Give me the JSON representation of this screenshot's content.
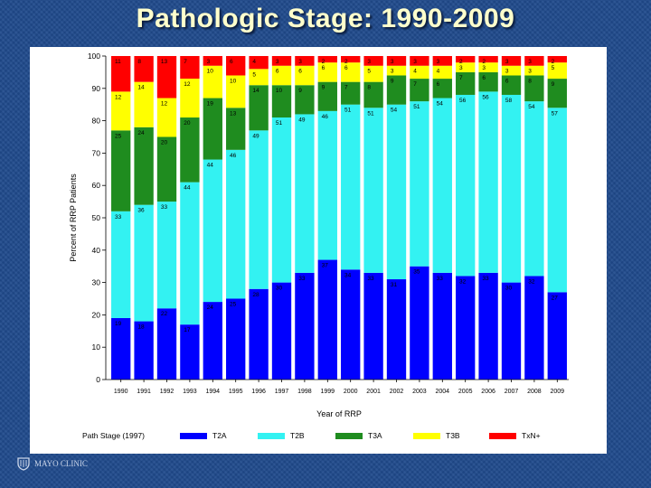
{
  "slide": {
    "title": "Pathologic Stage: 1990-2009"
  },
  "logo": {
    "text": "MAYO CLINIC"
  },
  "legend": {
    "title": "Path Stage (1997)"
  },
  "colors": {
    "T2A": "#0000ff",
    "T2B": "#33f2f2",
    "T3A": "#1f8c1f",
    "T3B": "#ffff00",
    "TxN+": "#ff0000"
  },
  "chart_data": {
    "type": "bar",
    "stacked": true,
    "title": "Pathologic Stage: 1990-2009",
    "xlabel": "Year of RRP",
    "ylabel": "Percent of RRP Patients",
    "ylim": [
      0,
      100
    ],
    "yticks": [
      "0",
      "10",
      "20",
      "30",
      "40",
      "50",
      "60",
      "70",
      "80",
      "90",
      "100"
    ],
    "categories": [
      "1990",
      "1991",
      "1992",
      "1993",
      "1994",
      "1995",
      "1996",
      "1997",
      "1998",
      "1999",
      "2000",
      "2001",
      "2002",
      "2003",
      "2004",
      "2005",
      "2006",
      "2007",
      "2008",
      "2009"
    ],
    "series": [
      {
        "name": "T2A",
        "values": [
          19,
          18,
          22,
          17,
          24,
          25,
          28,
          30,
          33,
          37,
          34,
          33,
          31,
          35,
          33,
          32,
          33,
          30,
          32,
          27
        ]
      },
      {
        "name": "T2B",
        "values": [
          33,
          36,
          33,
          44,
          44,
          46,
          49,
          51,
          49,
          46,
          51,
          51,
          54,
          51,
          54,
          56,
          56,
          58,
          54,
          57
        ]
      },
      {
        "name": "T3A",
        "values": [
          25,
          24,
          20,
          20,
          19,
          13,
          14,
          10,
          9,
          9,
          7,
          8,
          9,
          7,
          6,
          7,
          6,
          6,
          8,
          9
        ]
      },
      {
        "name": "T3B",
        "values": [
          12,
          14,
          12,
          12,
          10,
          10,
          5,
          6,
          6,
          6,
          6,
          5,
          3,
          4,
          4,
          3,
          3,
          3,
          3,
          5
        ]
      },
      {
        "name": "TxN+",
        "values": [
          11,
          8,
          13,
          7,
          3,
          6,
          4,
          3,
          3,
          2,
          2,
          3,
          3,
          3,
          3,
          2,
          2,
          3,
          3,
          2
        ]
      }
    ],
    "value_labels": [
      {
        "name": "T2A",
        "labels": [
          "19",
          "18",
          "22",
          "17",
          "24",
          "25",
          "28",
          "30",
          "33",
          "37",
          "34",
          "33",
          "31",
          "35",
          "33",
          "32",
          "33",
          "30",
          "32",
          "27"
        ]
      },
      {
        "name": "T2B",
        "labels": [
          "33",
          "36",
          "33",
          "44",
          "44",
          "46",
          "49",
          "51",
          "49",
          "46",
          "51",
          "51",
          "54",
          "51",
          "54",
          "56",
          "56",
          "58",
          "54",
          "57"
        ]
      },
      {
        "name": "T3A",
        "labels": [
          "25",
          "24",
          "20",
          "20",
          "19",
          "13",
          "14",
          "10",
          "9",
          "9",
          "7",
          "8",
          "9",
          "7",
          "6",
          "7",
          "6",
          "6",
          "8",
          "9"
        ]
      },
      {
        "name": "T3B",
        "labels": [
          "12",
          "14",
          "12",
          "12",
          "10",
          "10",
          "5",
          "6",
          "6",
          "6",
          "6",
          "5",
          "3",
          "4",
          "4",
          "3",
          "3",
          "3",
          "3",
          "5"
        ]
      },
      {
        "name": "TxN+",
        "labels": [
          "11",
          "8",
          "13",
          "7",
          "3",
          "6",
          "4",
          "3",
          "3",
          "2",
          "2",
          "3",
          "3",
          "3",
          "3",
          "2",
          "2",
          "3",
          "3",
          "2"
        ]
      }
    ],
    "legend": [
      "T2A",
      "T2B",
      "T3A",
      "T3B",
      "TxN+"
    ],
    "legend_position": "bottom",
    "grid": false
  }
}
